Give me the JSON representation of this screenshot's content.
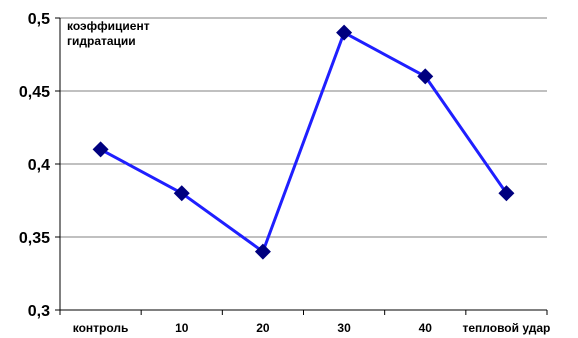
{
  "chart_data": {
    "type": "line",
    "categories": [
      "контроль",
      "10",
      "20",
      "30",
      "40",
      "тепловой удар"
    ],
    "series": [
      {
        "values": [
          0.41,
          0.38,
          0.34,
          0.49,
          0.46,
          0.38
        ]
      }
    ],
    "ylabel_lines": [
      "коэффициент",
      "гидратации"
    ],
    "ylim": [
      0.3,
      0.5
    ],
    "yticks": [
      "0,3",
      "0,35",
      "0,4",
      "0,45",
      "0,5"
    ],
    "grid": true,
    "legend": "none",
    "colors": {
      "line": "#1F1FFF",
      "marker": "#00007F",
      "grid": "#808080"
    },
    "marker": "diamond"
  }
}
